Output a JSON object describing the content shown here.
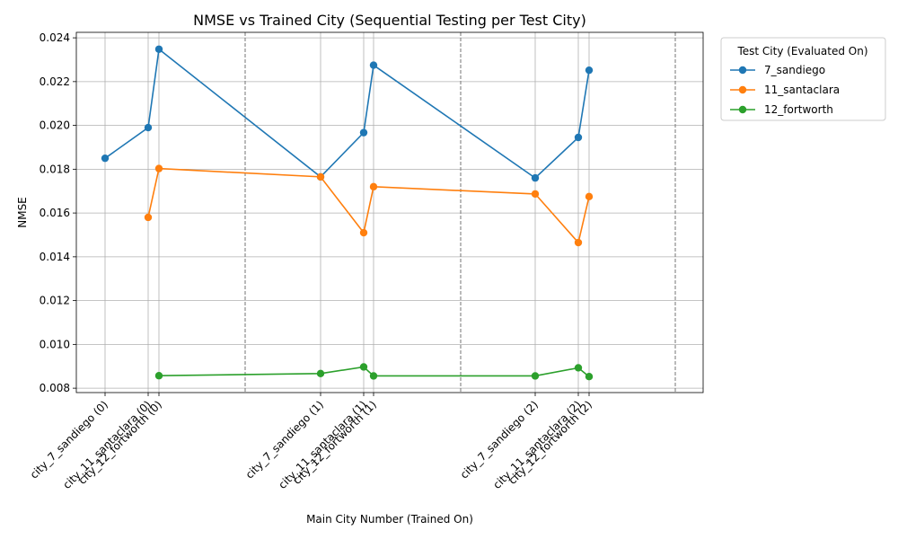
{
  "chart_data": {
    "type": "line",
    "title": "NMSE vs Trained City (Sequential Testing per Test City)",
    "xlabel": "Main City Number (Trained On)",
    "ylabel": "NMSE",
    "categories": [
      "city_7_sandiego (0)",
      "city_11_santaclara (0)",
      "city_12_fortworth (0)",
      "city_7_sandiego (1)",
      "city_11_santaclara (1)",
      "city_12_fortworth (1)",
      "city_7_sandiego (2)",
      "city_11_santaclara (2)",
      "city_12_fortworth (2)"
    ],
    "ylim": [
      0.0078,
      0.02425
    ],
    "yticks": [
      "0.008",
      "0.010",
      "0.012",
      "0.014",
      "0.016",
      "0.018",
      "0.020",
      "0.022",
      "0.024"
    ],
    "grid": true,
    "legend": {
      "title": "Test City (Evaluated On)",
      "placement": "outside-top-right"
    },
    "series": [
      {
        "name": "7_sandiego",
        "color": "#1f77b4",
        "values": [
          0.0185,
          0.0199,
          0.02348,
          0.01765,
          0.01967,
          0.02275,
          0.0176,
          0.01945,
          0.02252
        ]
      },
      {
        "name": "11_santaclara",
        "color": "#ff7f0e",
        "values": [
          null,
          0.0158,
          0.01803,
          0.01765,
          0.0151,
          0.0172,
          0.01687,
          0.01465,
          0.01675
        ]
      },
      {
        "name": "12_fortworth",
        "color": "#2ca02c",
        "values": [
          null,
          null,
          0.00857,
          0.00867,
          0.00897,
          0.00856,
          0.00856,
          0.00893,
          0.00853
        ]
      }
    ]
  }
}
